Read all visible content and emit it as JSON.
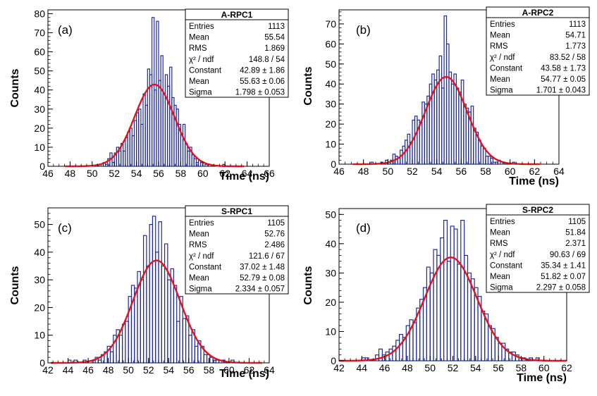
{
  "chart_data": [
    {
      "type": "histogram",
      "panel_label": "(a)",
      "xlabel": "Time (ns)",
      "ylabel": "Counts",
      "xlim": [
        46,
        66
      ],
      "ylim": [
        0,
        82
      ],
      "xticks": [
        "46",
        "48",
        "50",
        "52",
        "54",
        "56",
        "58",
        "60",
        "62",
        "64",
        "66"
      ],
      "yticks": [
        "0",
        "10",
        "20",
        "30",
        "40",
        "50",
        "60",
        "70",
        "80"
      ],
      "bin_width": 0.2,
      "bins": [
        [
          50.4,
          1
        ],
        [
          50.6,
          1
        ],
        [
          51.0,
          2
        ],
        [
          51.2,
          1
        ],
        [
          51.4,
          4
        ],
        [
          51.6,
          7
        ],
        [
          51.8,
          2
        ],
        [
          52.0,
          7
        ],
        [
          52.2,
          10
        ],
        [
          52.4,
          8
        ],
        [
          52.6,
          12
        ],
        [
          52.8,
          8
        ],
        [
          53.0,
          15
        ],
        [
          53.2,
          18
        ],
        [
          53.4,
          20
        ],
        [
          53.6,
          16
        ],
        [
          53.8,
          24
        ],
        [
          54.0,
          28
        ],
        [
          54.2,
          30
        ],
        [
          54.4,
          22
        ],
        [
          54.6,
          38
        ],
        [
          54.8,
          32
        ],
        [
          55.0,
          51
        ],
        [
          55.2,
          48
        ],
        [
          55.4,
          78
        ],
        [
          55.6,
          40
        ],
        [
          55.8,
          76
        ],
        [
          56.0,
          45
        ],
        [
          56.2,
          58
        ],
        [
          56.4,
          38
        ],
        [
          56.6,
          48
        ],
        [
          56.8,
          42
        ],
        [
          57.0,
          52
        ],
        [
          57.2,
          36
        ],
        [
          57.4,
          32
        ],
        [
          57.6,
          30
        ],
        [
          57.8,
          22
        ],
        [
          58.0,
          17
        ],
        [
          58.2,
          22
        ],
        [
          58.4,
          12
        ],
        [
          58.6,
          8
        ],
        [
          58.8,
          10
        ],
        [
          59.0,
          6
        ],
        [
          59.2,
          4
        ],
        [
          59.4,
          2
        ],
        [
          59.6,
          3
        ],
        [
          59.8,
          2
        ],
        [
          60.2,
          1
        ],
        [
          61.8,
          1
        ]
      ],
      "fit": {
        "type": "gaussian",
        "constant": 42.89,
        "mean": 55.63,
        "sigma": 1.798
      },
      "stats_box": {
        "title": "A-RPC1",
        "rows": [
          {
            "label": "Entries",
            "value": "1113"
          },
          {
            "label": "Mean",
            "value": "55.54"
          },
          {
            "label": "RMS",
            "value": "1.869"
          },
          {
            "label": "χ² / ndf",
            "value": "148.8 / 54"
          },
          {
            "label": "Constant",
            "value": "42.89 ± 1.86"
          },
          {
            "label": "Mean",
            "value": "55.63 ± 0.06"
          },
          {
            "label": "Sigma",
            "value": "1.798 ± 0.053"
          }
        ]
      }
    },
    {
      "type": "histogram",
      "panel_label": "(b)",
      "xlabel": "Time (ns)",
      "ylabel": "Counts",
      "xlim": [
        46,
        64
      ],
      "ylim": [
        0,
        77
      ],
      "xticks": [
        "46",
        "48",
        "50",
        "52",
        "54",
        "56",
        "58",
        "60",
        "62",
        "64"
      ],
      "yticks": [
        "0",
        "10",
        "20",
        "30",
        "40",
        "50",
        "60",
        "70"
      ],
      "bin_width": 0.2,
      "bins": [
        [
          48.6,
          1
        ],
        [
          49.4,
          1
        ],
        [
          49.8,
          2
        ],
        [
          50.0,
          1
        ],
        [
          50.2,
          2
        ],
        [
          50.4,
          5
        ],
        [
          50.6,
          4
        ],
        [
          50.8,
          3
        ],
        [
          51.0,
          7
        ],
        [
          51.2,
          9
        ],
        [
          51.4,
          12
        ],
        [
          51.6,
          15
        ],
        [
          51.8,
          11
        ],
        [
          52.0,
          22
        ],
        [
          52.2,
          24
        ],
        [
          52.4,
          22
        ],
        [
          52.6,
          21
        ],
        [
          52.8,
          31
        ],
        [
          53.0,
          30
        ],
        [
          53.2,
          34
        ],
        [
          53.4,
          40
        ],
        [
          53.6,
          45
        ],
        [
          53.8,
          42
        ],
        [
          54.0,
          47
        ],
        [
          54.2,
          54
        ],
        [
          54.4,
          38
        ],
        [
          54.6,
          74
        ],
        [
          54.8,
          60
        ],
        [
          55.0,
          46
        ],
        [
          55.2,
          40
        ],
        [
          55.4,
          45
        ],
        [
          55.6,
          38
        ],
        [
          55.8,
          36
        ],
        [
          56.0,
          42
        ],
        [
          56.2,
          30
        ],
        [
          56.4,
          28
        ],
        [
          56.6,
          26
        ],
        [
          56.8,
          29
        ],
        [
          57.0,
          18
        ],
        [
          57.2,
          16
        ],
        [
          57.4,
          12
        ],
        [
          57.6,
          9
        ],
        [
          57.8,
          8
        ],
        [
          58.0,
          4
        ],
        [
          58.2,
          4
        ],
        [
          58.4,
          3
        ],
        [
          58.6,
          1
        ],
        [
          58.8,
          1
        ],
        [
          59.0,
          2
        ],
        [
          59.4,
          1
        ],
        [
          60.2,
          1
        ]
      ],
      "fit": {
        "type": "gaussian",
        "constant": 43.58,
        "mean": 54.77,
        "sigma": 1.701
      },
      "stats_box": {
        "title": "A-RPC2",
        "rows": [
          {
            "label": "Entries",
            "value": "1113"
          },
          {
            "label": "Mean",
            "value": "54.71"
          },
          {
            "label": "RMS",
            "value": "1.773"
          },
          {
            "label": "χ² / ndf",
            "value": "83.52 / 58"
          },
          {
            "label": "Constant",
            "value": "43.58 ± 1.73"
          },
          {
            "label": "Mean",
            "value": "54.77 ± 0.05"
          },
          {
            "label": "Sigma",
            "value": "1.701 ± 0.043"
          }
        ]
      }
    },
    {
      "type": "histogram",
      "panel_label": "(c)",
      "xlabel": "Time (ns)",
      "ylabel": "Counts",
      "xlim": [
        42,
        64
      ],
      "ylim": [
        0,
        56
      ],
      "xticks": [
        "42",
        "44",
        "46",
        "48",
        "50",
        "52",
        "54",
        "56",
        "58",
        "60",
        "62",
        "64"
      ],
      "yticks": [
        "0",
        "10",
        "20",
        "30",
        "40",
        "50"
      ],
      "bin_width": 0.3,
      "bins": [
        [
          44.0,
          1
        ],
        [
          44.6,
          1
        ],
        [
          45.5,
          1
        ],
        [
          46.4,
          1
        ],
        [
          46.7,
          2
        ],
        [
          47.0,
          1
        ],
        [
          47.3,
          3
        ],
        [
          47.6,
          4
        ],
        [
          47.9,
          6
        ],
        [
          48.2,
          4
        ],
        [
          48.5,
          10
        ],
        [
          48.8,
          12
        ],
        [
          49.1,
          10
        ],
        [
          49.4,
          14
        ],
        [
          49.7,
          15
        ],
        [
          50.0,
          24
        ],
        [
          50.3,
          28
        ],
        [
          50.6,
          27
        ],
        [
          50.9,
          33
        ],
        [
          51.2,
          30
        ],
        [
          51.5,
          46
        ],
        [
          51.8,
          35
        ],
        [
          52.1,
          50
        ],
        [
          52.4,
          53
        ],
        [
          52.7,
          40
        ],
        [
          53.0,
          51
        ],
        [
          53.3,
          35
        ],
        [
          53.6,
          43
        ],
        [
          53.9,
          30
        ],
        [
          54.2,
          34
        ],
        [
          54.5,
          28
        ],
        [
          54.8,
          15
        ],
        [
          55.1,
          24
        ],
        [
          55.4,
          16
        ],
        [
          55.7,
          17
        ],
        [
          56.0,
          10
        ],
        [
          56.3,
          12
        ],
        [
          56.6,
          6
        ],
        [
          56.9,
          8
        ],
        [
          57.2,
          6
        ],
        [
          57.5,
          3
        ],
        [
          57.8,
          3
        ],
        [
          58.1,
          2
        ],
        [
          58.4,
          1
        ],
        [
          58.7,
          1
        ],
        [
          59.3,
          1
        ],
        [
          60.2,
          1
        ]
      ],
      "fit": {
        "type": "gaussian",
        "constant": 37.02,
        "mean": 52.79,
        "sigma": 2.334
      },
      "stats_box": {
        "title": "S-RPC1",
        "rows": [
          {
            "label": "Entries",
            "value": "1105"
          },
          {
            "label": "Mean",
            "value": "52.76"
          },
          {
            "label": "RMS",
            "value": "2.486"
          },
          {
            "label": "χ² / ndf",
            "value": "121.6 / 67"
          },
          {
            "label": "Constant",
            "value": "37.02 ± 1.48"
          },
          {
            "label": "Mean",
            "value": "52.79 ± 0.08"
          },
          {
            "label": "Sigma",
            "value": "2.334 ± 0.057"
          }
        ]
      }
    },
    {
      "type": "histogram",
      "panel_label": "(d)",
      "xlabel": "Time (ns)",
      "ylabel": "Counts",
      "xlim": [
        42,
        62
      ],
      "ylim": [
        0,
        52
      ],
      "xticks": [
        "42",
        "44",
        "46",
        "48",
        "50",
        "52",
        "54",
        "56",
        "58",
        "60",
        "62"
      ],
      "yticks": [
        "0",
        "10",
        "20",
        "30",
        "40",
        "50"
      ],
      "bin_width": 0.3,
      "bins": [
        [
          44.0,
          1
        ],
        [
          44.3,
          1
        ],
        [
          45.2,
          2
        ],
        [
          45.5,
          4
        ],
        [
          45.8,
          2
        ],
        [
          46.1,
          3
        ],
        [
          46.4,
          4
        ],
        [
          46.7,
          5
        ],
        [
          47.0,
          7
        ],
        [
          47.3,
          9
        ],
        [
          47.6,
          8
        ],
        [
          47.9,
          12
        ],
        [
          48.2,
          14
        ],
        [
          48.5,
          13
        ],
        [
          48.8,
          18
        ],
        [
          49.1,
          21
        ],
        [
          49.4,
          25
        ],
        [
          49.7,
          32
        ],
        [
          50.0,
          30
        ],
        [
          50.3,
          38
        ],
        [
          50.6,
          36
        ],
        [
          50.9,
          42
        ],
        [
          51.2,
          48
        ],
        [
          51.5,
          34
        ],
        [
          51.8,
          46
        ],
        [
          52.1,
          45
        ],
        [
          52.4,
          33
        ],
        [
          52.7,
          48
        ],
        [
          53.0,
          36
        ],
        [
          53.3,
          30
        ],
        [
          53.6,
          28
        ],
        [
          53.9,
          25
        ],
        [
          54.2,
          22
        ],
        [
          54.5,
          17
        ],
        [
          54.8,
          16
        ],
        [
          55.1,
          12
        ],
        [
          55.4,
          11
        ],
        [
          55.7,
          8
        ],
        [
          56.0,
          6
        ],
        [
          56.3,
          6
        ],
        [
          56.6,
          4
        ],
        [
          56.9,
          3
        ],
        [
          57.2,
          3
        ],
        [
          57.5,
          2
        ],
        [
          57.8,
          1
        ],
        [
          58.1,
          1
        ],
        [
          58.7,
          1
        ],
        [
          59.3,
          1
        ]
      ],
      "fit": {
        "type": "gaussian",
        "constant": 35.34,
        "mean": 51.82,
        "sigma": 2.297
      },
      "stats_box": {
        "title": "S-RPC2",
        "rows": [
          {
            "label": "Entries",
            "value": "1105"
          },
          {
            "label": "Mean",
            "value": "51.84"
          },
          {
            "label": "RMS",
            "value": "2.371"
          },
          {
            "label": "χ² / ndf",
            "value": "90.63 / 69"
          },
          {
            "label": "Constant",
            "value": "35.34 ± 1.41"
          },
          {
            "label": "Mean",
            "value": "51.82 ± 0.07"
          },
          {
            "label": "Sigma",
            "value": "2.297 ± 0.058"
          }
        ]
      }
    }
  ],
  "colors": {
    "histogram": "#1f2a9a",
    "fit": "#e0141c",
    "axis": "#000000"
  }
}
